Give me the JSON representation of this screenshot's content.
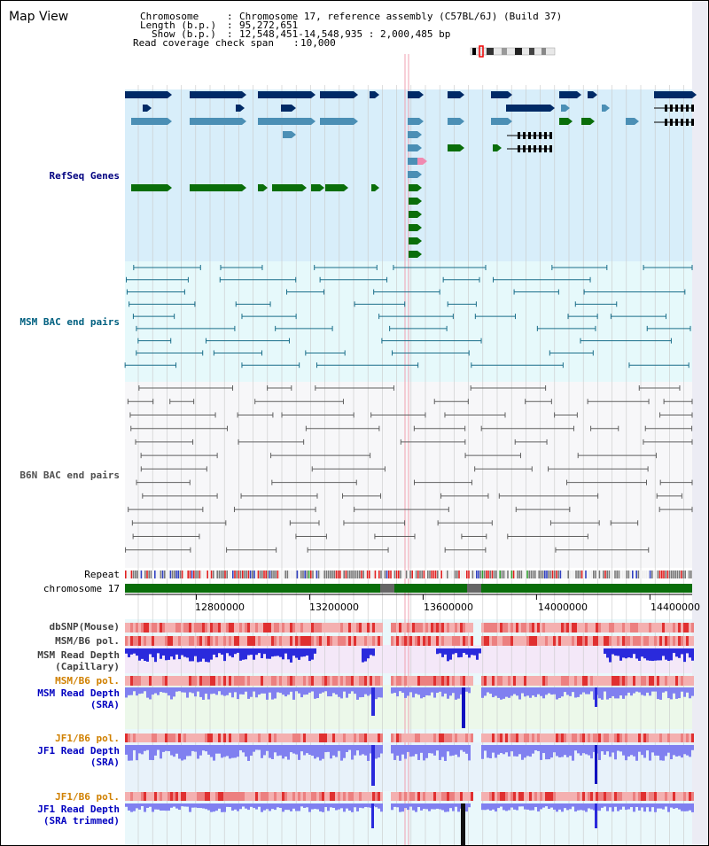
{
  "window": {
    "title": "Map View"
  },
  "header": {
    "chromosome_key": "Chromosome",
    "chromosome_val": "Chromosome 17, reference assembly (C57BL/6J) (Build 37)",
    "length_key": "Length (b.p.)",
    "length_val": "95,272,651",
    "show_key": "Show (b.p.)",
    "show_val": "12,548,451-14,548,935 : 2,000,485 bp",
    "coverage_key": "Read coverage check span",
    "coverage_val": "10,000"
  },
  "tracks": {
    "refseq": "RefSeq Genes",
    "msm_bac": "MSM BAC end pairs",
    "b6n_bac": "B6N BAC end pairs",
    "repeat": "Repeat",
    "chromosome": "chromosome 17",
    "dbsnp": "dbSNP(Mouse)",
    "msm_b6_pol": "MSM/B6 pol.",
    "msm_read_cap_1": "MSM Read Depth",
    "msm_read_cap_2": "(Capillary)",
    "msm_b6_pol_2": "MSM/B6 pol.",
    "msm_read_sra_1": "MSM Read Depth",
    "msm_read_sra_2": "(SRA)",
    "jf1_b6_pol": "JF1/B6 pol.",
    "jf1_read_sra_1": "JF1 Read Depth",
    "jf1_read_sra_2": "(SRA)",
    "jf1_b6_pol_2": "JF1/B6 pol.",
    "jf1_read_trim_1": "JF1 Read Depth",
    "jf1_read_trim_2": "(SRA trimmed)"
  },
  "axis": {
    "ticks": [
      "12800000",
      "13200000",
      "13600000",
      "14000000",
      "14400000"
    ],
    "tick_values": [
      12800000,
      13200000,
      13600000,
      14000000,
      14400000
    ],
    "start": 12548451,
    "end": 14548935
  },
  "colors": {
    "refseq_bg": "#d8eefa",
    "msm_bg": "#e6f9fb",
    "b6n_bg": "#f7f7f9",
    "navy": "#002a66",
    "steel": "#4b8fb5",
    "green": "#0a6e0a",
    "bac_teal": "#1a6e8a",
    "bac_gray": "#606060",
    "chrom_green": "#0a6e0a",
    "read_blue": "#2a2adc",
    "read_lavender": "#8080f0",
    "pol_pink": "#f4b0b0",
    "pol_red": "#e03030"
  }
}
